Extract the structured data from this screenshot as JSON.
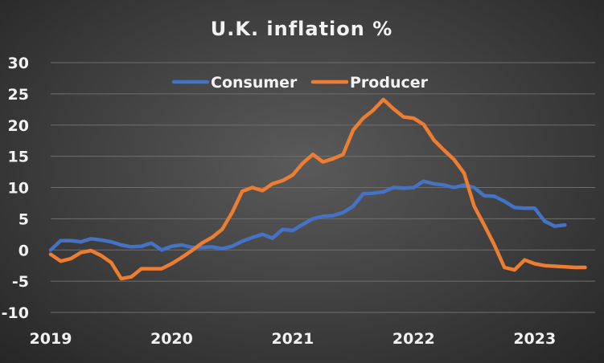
{
  "chart_data": {
    "type": "line",
    "title": "U.K. inflation %",
    "xlabel": "",
    "ylabel": "",
    "ylim": [
      -10,
      30
    ],
    "yticks": [
      -10,
      -5,
      0,
      5,
      10,
      15,
      20,
      25,
      30
    ],
    "xtick_labels": [
      "2019",
      "2020",
      "2021",
      "2022",
      "2023"
    ],
    "xlim_years": [
      2019.0,
      2023.5
    ],
    "grid": "horizontal",
    "legend_position": "top-center",
    "series": [
      {
        "name": "Consumer",
        "color": "#4472c4",
        "x": [
          2019.0,
          2019.083,
          2019.167,
          2019.25,
          2019.333,
          2019.417,
          2019.5,
          2019.583,
          2019.667,
          2019.75,
          2019.833,
          2019.917,
          2020.0,
          2020.083,
          2020.167,
          2020.25,
          2020.333,
          2020.417,
          2020.5,
          2020.583,
          2020.667,
          2020.75,
          2020.833,
          2020.917,
          2021.0,
          2021.083,
          2021.167,
          2021.25,
          2021.333,
          2021.417,
          2021.5,
          2021.583,
          2021.667,
          2021.75,
          2021.833,
          2021.917,
          2022.0,
          2022.083,
          2022.167,
          2022.25,
          2022.333,
          2022.417,
          2022.5,
          2022.583,
          2022.667,
          2022.75,
          2022.833,
          2022.917,
          2023.0,
          2023.083,
          2023.167,
          2023.25
        ],
        "values": [
          0,
          1.5,
          1.5,
          1.3,
          1.8,
          1.6,
          1.3,
          0.8,
          0.5,
          0.6,
          1.1,
          0,
          0.6,
          0.8,
          0.4,
          0.4,
          0.5,
          0.2,
          0.6,
          1.4,
          2.0,
          2.5,
          1.9,
          3.3,
          3.1,
          4.1,
          5.0,
          5.4,
          5.5,
          6.0,
          7.0,
          9.0,
          9.1,
          9.3,
          10.0,
          9.9,
          10.0,
          11.0,
          10.6,
          10.4,
          10.0,
          10.4,
          10.0,
          8.7,
          8.6,
          7.8,
          6.8,
          6.7,
          6.7,
          4.6,
          3.8,
          4.0
        ]
      },
      {
        "name": "Producer",
        "color": "#ed7d31",
        "x": [
          2019.0,
          2019.083,
          2019.167,
          2019.25,
          2019.333,
          2019.417,
          2019.5,
          2019.583,
          2019.667,
          2019.75,
          2019.833,
          2019.917,
          2020.0,
          2020.083,
          2020.167,
          2020.25,
          2020.333,
          2020.417,
          2020.5,
          2020.583,
          2020.667,
          2020.75,
          2020.833,
          2020.917,
          2021.0,
          2021.083,
          2021.167,
          2021.25,
          2021.333,
          2021.417,
          2021.5,
          2021.583,
          2021.667,
          2021.75,
          2021.833,
          2021.917,
          2022.0,
          2022.083,
          2022.167,
          2022.25,
          2022.333,
          2022.417,
          2022.5,
          2022.583,
          2022.667,
          2022.75,
          2022.833,
          2022.917,
          2023.0,
          2023.083,
          2023.167,
          2023.25,
          2023.333,
          2023.417
        ],
        "values": [
          -0.7,
          -1.8,
          -1.4,
          -0.4,
          -0.1,
          -0.9,
          -2.0,
          -4.6,
          -4.3,
          -3.0,
          -3.0,
          -3.0,
          -2.2,
          -1.2,
          -0.1,
          1.1,
          2.0,
          3.3,
          6.0,
          9.4,
          10.0,
          9.5,
          10.6,
          11.1,
          12.0,
          13.9,
          15.3,
          14.1,
          14.6,
          15.3,
          19.2,
          21.1,
          22.4,
          24.1,
          22.6,
          21.3,
          21.1,
          20.1,
          17.6,
          16.0,
          14.5,
          12.3,
          7.0,
          4.0,
          0.8,
          -2.8,
          -3.2,
          -1.6,
          -2.2,
          -2.5,
          -2.6,
          -2.7,
          -2.8,
          -2.8
        ]
      }
    ]
  }
}
